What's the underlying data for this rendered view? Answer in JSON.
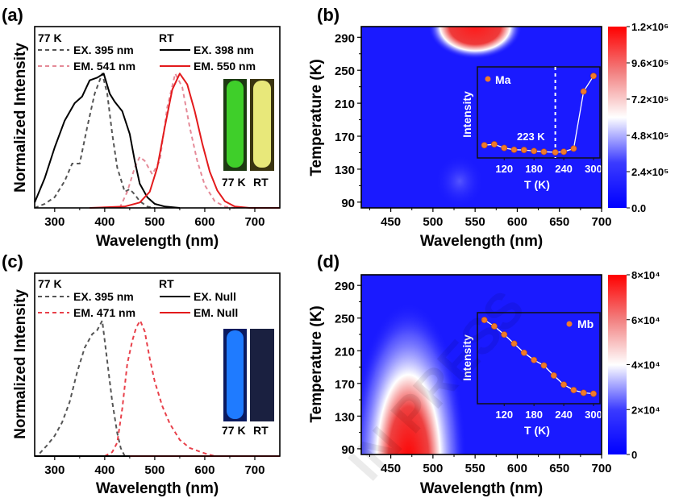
{
  "watermark": "IN PRESS",
  "chart_data": [
    {
      "panel_label": "(a)",
      "type": "line",
      "xlabel": "Wavelength (nm)",
      "ylabel": "Normalized Intensity",
      "xlim": [
        260,
        750
      ],
      "ylim": [
        0,
        1.35
      ],
      "xticks": [
        300,
        400,
        500,
        600,
        700
      ],
      "legend": {
        "group1": "77 K",
        "group2": "RT"
      },
      "series": [
        {
          "name": "EX. 395 nm",
          "group": "77 K",
          "color": "#555555",
          "style": "dashed",
          "x": [
            260,
            280,
            300,
            320,
            335,
            350,
            365,
            380,
            395,
            405,
            415,
            425,
            440,
            450,
            460,
            470,
            485,
            500
          ],
          "y": [
            0,
            0.03,
            0.08,
            0.2,
            0.33,
            0.33,
            0.6,
            0.85,
            1.0,
            0.85,
            0.55,
            0.3,
            0.12,
            0.14,
            0.1,
            0.05,
            0.01,
            0
          ]
        },
        {
          "name": "EM. 541 nm",
          "group": "77 K",
          "color": "#e58a98",
          "style": "dashed",
          "x": [
            430,
            445,
            460,
            470,
            480,
            495,
            510,
            525,
            541,
            555,
            570,
            585,
            600,
            620,
            640,
            660
          ],
          "y": [
            0,
            0.12,
            0.3,
            0.38,
            0.35,
            0.25,
            0.35,
            0.75,
            1.0,
            0.9,
            0.6,
            0.35,
            0.17,
            0.05,
            0.01,
            0
          ]
        },
        {
          "name": "EX. 398 nm",
          "group": "RT",
          "color": "#000000",
          "style": "solid",
          "x": [
            260,
            280,
            300,
            320,
            340,
            355,
            370,
            385,
            398,
            410,
            420,
            435,
            450,
            460,
            470,
            485,
            500,
            520,
            550
          ],
          "y": [
            0.04,
            0.22,
            0.45,
            0.65,
            0.78,
            0.83,
            0.95,
            0.97,
            1.0,
            0.85,
            0.79,
            0.72,
            0.55,
            0.35,
            0.18,
            0.08,
            0.03,
            0.01,
            0
          ]
        },
        {
          "name": "EM. 550 nm",
          "group": "RT",
          "color": "#e31a1c",
          "style": "solid",
          "x": [
            370,
            440,
            470,
            490,
            505,
            520,
            535,
            550,
            565,
            580,
            595,
            610,
            625,
            640,
            660,
            690,
            750
          ],
          "y": [
            0,
            0.01,
            0.04,
            0.12,
            0.3,
            0.6,
            0.88,
            1.0,
            0.92,
            0.72,
            0.48,
            0.27,
            0.13,
            0.05,
            0.01,
            0,
            0
          ]
        }
      ],
      "photo_labels": [
        "77 K",
        "RT"
      ],
      "photo_colors": [
        "#3fcf2a",
        "#e8e87a"
      ]
    },
    {
      "panel_label": "(b)",
      "type": "heatmap",
      "xlabel": "Wavelength (nm)",
      "ylabel": "Temperature (K)",
      "xlim": [
        415,
        700
      ],
      "ylim": [
        83,
        303
      ],
      "xticks": [
        450,
        500,
        550,
        600,
        650,
        700
      ],
      "yticks": [
        90,
        130,
        170,
        210,
        250,
        290
      ],
      "colorbar": {
        "range": [
          0,
          1200000
        ],
        "ticks": [
          0,
          240000,
          480000,
          720000,
          960000,
          1200000
        ],
        "tick_labels": [
          "0.0",
          "2.4×10⁵",
          "4.8×10⁵",
          "7.2×10⁵",
          "9.6×10⁵",
          "1.2×10⁶"
        ],
        "colors": [
          "#0000ff",
          "#ffffff",
          "#ff0000"
        ]
      },
      "hotspot": {
        "wavelength": 550,
        "temperature": 300
      },
      "inset": {
        "type": "line",
        "series_name": "Ma",
        "xlabel": "T (K)",
        "ylabel": "Intensity",
        "xlim": [
          66,
          313
        ],
        "ylim": [
          0,
          1
        ],
        "xticks": [
          120,
          180,
          240,
          300
        ],
        "x": [
          80,
          100,
          120,
          140,
          160,
          180,
          200,
          223,
          240,
          260,
          280,
          300
        ],
        "y": [
          0.14,
          0.15,
          0.11,
          0.09,
          0.088,
          0.076,
          0.068,
          0.062,
          0.068,
          0.103,
          0.73,
          0.9
        ],
        "marker_color": "#f07a2a",
        "annotation": {
          "x": 223,
          "label": "223 K"
        }
      }
    },
    {
      "panel_label": "(c)",
      "type": "line",
      "xlabel": "Wavelength (nm)",
      "ylabel": "Normalized Intensity",
      "xlim": [
        260,
        750
      ],
      "ylim": [
        0,
        1.35
      ],
      "xticks": [
        300,
        400,
        500,
        600,
        700
      ],
      "legend": {
        "group1": "77 K",
        "group2": "RT"
      },
      "series": [
        {
          "name": "EX. 395 nm",
          "group": "77 K",
          "color": "#555555",
          "style": "dashed",
          "x": [
            270,
            285,
            300,
            315,
            330,
            345,
            360,
            375,
            385,
            395,
            405,
            415,
            425,
            432,
            440
          ],
          "y": [
            0.02,
            0.08,
            0.15,
            0.25,
            0.4,
            0.62,
            0.8,
            0.9,
            0.93,
            1.0,
            0.7,
            0.4,
            0.17,
            0.06,
            0
          ]
        },
        {
          "name": "EM. 471 nm",
          "group": "77 K",
          "color": "#e8404a",
          "style": "dashed",
          "x": [
            400,
            415,
            425,
            435,
            445,
            455,
            463,
            471,
            480,
            490,
            500,
            515,
            530,
            550,
            570,
            600,
            620
          ],
          "y": [
            0,
            0.03,
            0.1,
            0.35,
            0.68,
            0.85,
            0.95,
            1.0,
            0.92,
            0.72,
            0.55,
            0.37,
            0.24,
            0.12,
            0.06,
            0.02,
            0
          ]
        },
        {
          "name": "EX. Null",
          "group": "RT",
          "color": "#000000",
          "style": "solid",
          "x": [
            260,
            450
          ],
          "y": [
            0,
            0
          ]
        },
        {
          "name": "EM. Null",
          "group": "RT",
          "color": "#e31a1c",
          "style": "solid",
          "x": [
            450,
            750
          ],
          "y": [
            0,
            0
          ]
        }
      ],
      "photo_labels": [
        "77 K",
        "RT"
      ],
      "photo_colors": [
        "#1f7bff",
        "#1a2040"
      ]
    },
    {
      "panel_label": "(d)",
      "type": "heatmap",
      "xlabel": "Wavelength (nm)",
      "ylabel": "Temperature (K)",
      "xlim": [
        415,
        700
      ],
      "ylim": [
        83,
        303
      ],
      "xticks": [
        450,
        500,
        550,
        600,
        650,
        700
      ],
      "yticks": [
        90,
        130,
        170,
        210,
        250,
        290
      ],
      "colorbar": {
        "range": [
          0,
          80000
        ],
        "ticks": [
          0,
          20000,
          40000,
          60000,
          80000
        ],
        "tick_labels": [
          "0",
          "2×10⁴",
          "4×10⁴",
          "6×10⁴",
          "8×10⁴"
        ],
        "colors": [
          "#0000ff",
          "#ffffff",
          "#ff0000"
        ]
      },
      "hotspot": {
        "wavelength": 471,
        "temperature": 83
      },
      "inset": {
        "type": "line",
        "series_name": "Mb",
        "xlabel": "T (K)",
        "ylabel": "Intensity",
        "xlim": [
          66,
          313
        ],
        "ylim": [
          0,
          1
        ],
        "xticks": [
          120,
          180,
          240,
          300
        ],
        "x": [
          80,
          100,
          120,
          140,
          160,
          180,
          200,
          220,
          240,
          260,
          280,
          300
        ],
        "y": [
          0.92,
          0.85,
          0.76,
          0.66,
          0.56,
          0.48,
          0.42,
          0.31,
          0.21,
          0.15,
          0.12,
          0.11
        ],
        "marker_color": "#f07a2a"
      }
    }
  ]
}
